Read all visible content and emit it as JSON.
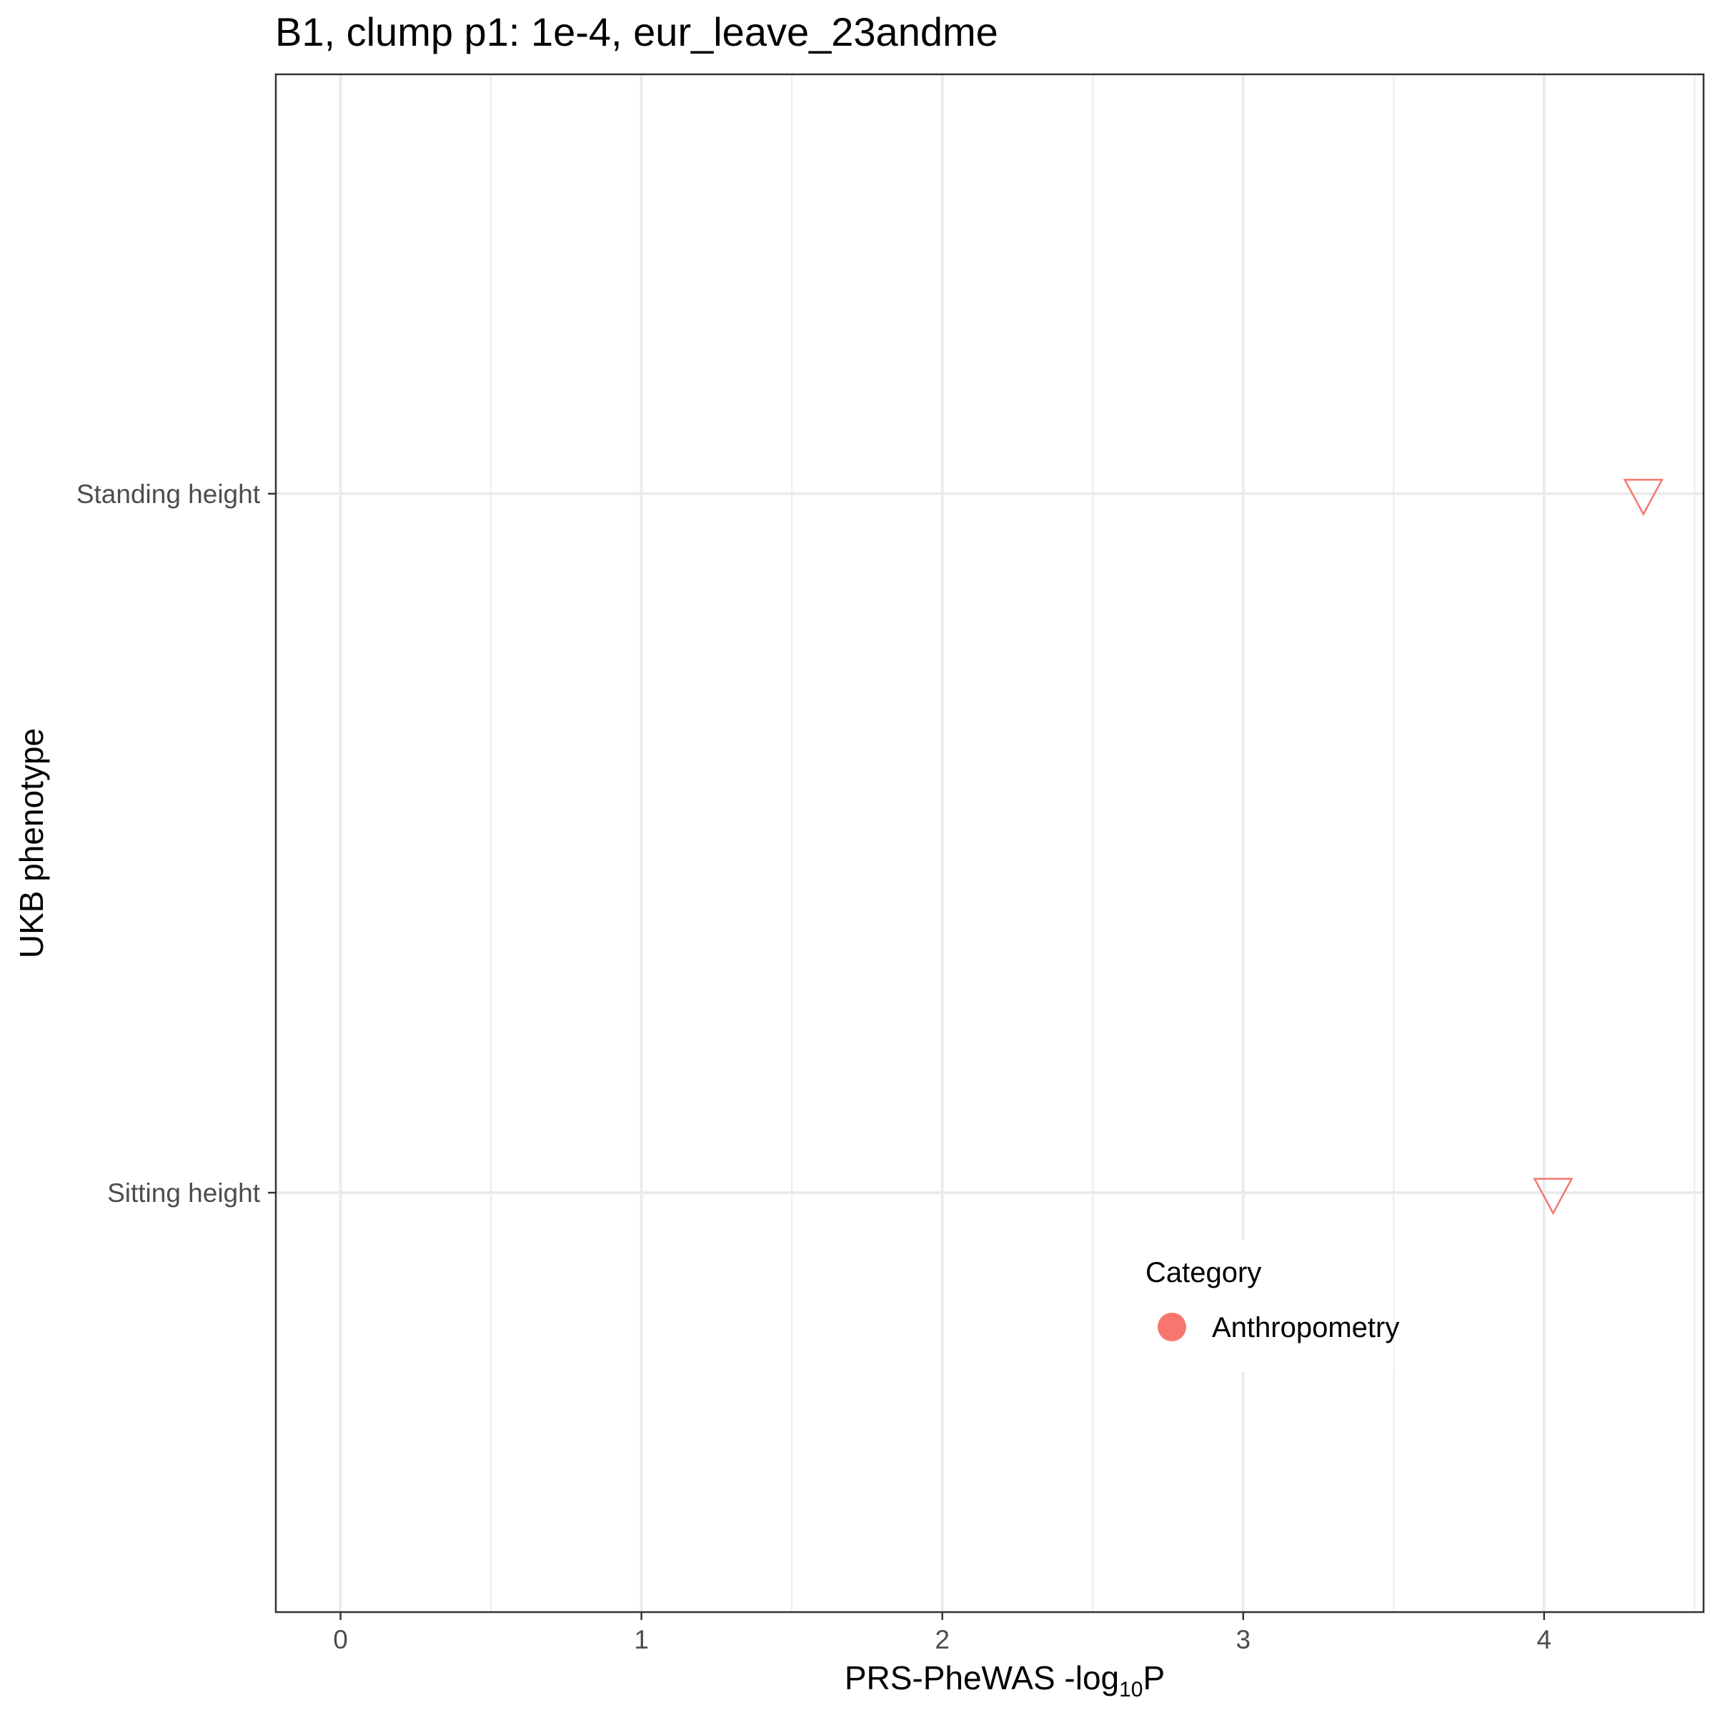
{
  "chart_data": {
    "type": "scatter",
    "title": "B1, clump p1: 1e-4, eur_leave_23andme",
    "xlabel_main": "PRS-PheWAS -log",
    "xlabel_sub": "10",
    "xlabel_tail": "P",
    "ylabel": "UKB phenotype",
    "xlim": [
      -0.215,
      4.53
    ],
    "x_ticks": [
      0,
      1,
      2,
      3,
      4
    ],
    "x_tick_labels": [
      "0",
      "1",
      "2",
      "3",
      "4"
    ],
    "x_minor_ticks": [
      0.5,
      1.5,
      2.5,
      3.5,
      4.5
    ],
    "categories": [
      "Sitting height",
      "Standing height"
    ],
    "points": [
      {
        "phenotype": "Standing height",
        "x": 4.33,
        "category": "Anthropometry",
        "shape": "triangle-down"
      },
      {
        "phenotype": "Sitting height",
        "x": 4.03,
        "category": "Anthropometry",
        "shape": "triangle-down"
      }
    ],
    "legend": {
      "title": "Category",
      "placement": "inside-bottom-right",
      "items": [
        {
          "label": "Anthropometry",
          "color": "#F8766D"
        }
      ]
    },
    "colors": {
      "Anthropometry": "#F8766D",
      "grid": "#ebebeb",
      "border": "#333333"
    },
    "grid": true
  }
}
